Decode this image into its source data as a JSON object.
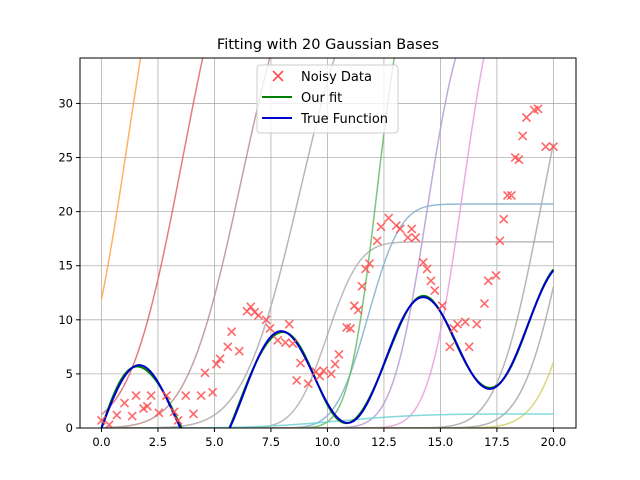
{
  "chart_data": {
    "type": "line",
    "title": "Fitting with 20 Gaussian Bases",
    "xlabel": "",
    "ylabel": "",
    "xlim": [
      -0.95,
      21.0
    ],
    "ylim": [
      0,
      34.2
    ],
    "xticks": [
      0.0,
      2.5,
      5.0,
      7.5,
      10.0,
      12.5,
      15.0,
      17.5,
      20.0
    ],
    "xtick_labels": [
      "0.0",
      "2.5",
      "5.0",
      "7.5",
      "10.0",
      "12.5",
      "15.0",
      "17.5",
      "20.0"
    ],
    "yticks": [
      0,
      5,
      10,
      15,
      20,
      25,
      30
    ],
    "ytick_labels": [
      "0",
      "5",
      "10",
      "15",
      "20",
      "25",
      "30"
    ],
    "grid": true,
    "legend": {
      "placement": "top-center",
      "entries": [
        {
          "label": "Noisy Data",
          "color": "#ff4d4d",
          "marker": "x"
        },
        {
          "label": "Our fit",
          "color": "#008000",
          "marker": "line"
        },
        {
          "label": "True Function",
          "color": "#0000cc",
          "marker": "line"
        }
      ]
    },
    "noisy_data": {
      "name": "Noisy Data",
      "color": "#ff4d4d",
      "points": [
        [
          0.0,
          0.7
        ],
        [
          0.34,
          0.3
        ],
        [
          0.68,
          1.2
        ],
        [
          1.02,
          2.3
        ],
        [
          1.36,
          1.1
        ],
        [
          1.53,
          3.0
        ],
        [
          1.86,
          1.8
        ],
        [
          2.03,
          2.0
        ],
        [
          2.2,
          3.0
        ],
        [
          2.54,
          1.4
        ],
        [
          2.88,
          3.0
        ],
        [
          3.22,
          1.5
        ],
        [
          3.39,
          0.7
        ],
        [
          3.73,
          3.0
        ],
        [
          4.07,
          1.3
        ],
        [
          4.41,
          3.0
        ],
        [
          4.58,
          5.1
        ],
        [
          4.92,
          3.3
        ],
        [
          5.09,
          5.9
        ],
        [
          5.25,
          6.4
        ],
        [
          5.59,
          7.5
        ],
        [
          5.76,
          8.9
        ],
        [
          6.1,
          7.1
        ],
        [
          6.44,
          10.8
        ],
        [
          6.61,
          11.2
        ],
        [
          6.78,
          10.7
        ],
        [
          6.95,
          10.4
        ],
        [
          7.29,
          10.0
        ],
        [
          7.46,
          9.2
        ],
        [
          7.8,
          8.1
        ],
        [
          8.14,
          7.9
        ],
        [
          8.31,
          9.6
        ],
        [
          8.47,
          7.8
        ],
        [
          8.64,
          4.4
        ],
        [
          8.81,
          6.0
        ],
        [
          9.15,
          4.1
        ],
        [
          9.49,
          5.2
        ],
        [
          9.66,
          4.8
        ],
        [
          9.83,
          5.3
        ],
        [
          10.17,
          5.0
        ],
        [
          10.34,
          5.9
        ],
        [
          10.51,
          6.8
        ],
        [
          10.85,
          9.3
        ],
        [
          11.02,
          9.2
        ],
        [
          11.19,
          11.3
        ],
        [
          11.36,
          10.9
        ],
        [
          11.53,
          13.1
        ],
        [
          11.69,
          14.7
        ],
        [
          11.86,
          15.2
        ],
        [
          12.2,
          17.3
        ],
        [
          12.37,
          18.6
        ],
        [
          12.71,
          19.4
        ],
        [
          13.05,
          18.7
        ],
        [
          13.22,
          18.4
        ],
        [
          13.56,
          17.6
        ],
        [
          13.73,
          18.4
        ],
        [
          13.9,
          17.6
        ],
        [
          14.24,
          15.3
        ],
        [
          14.41,
          14.7
        ],
        [
          14.58,
          13.6
        ],
        [
          14.75,
          12.7
        ],
        [
          15.08,
          11.3
        ],
        [
          15.42,
          7.5
        ],
        [
          15.59,
          9.2
        ],
        [
          15.76,
          9.6
        ],
        [
          16.1,
          9.8
        ],
        [
          16.27,
          7.5
        ],
        [
          16.61,
          9.6
        ],
        [
          16.95,
          11.5
        ],
        [
          17.12,
          13.6
        ],
        [
          17.46,
          14.1
        ],
        [
          17.63,
          17.3
        ],
        [
          17.8,
          19.3
        ],
        [
          17.97,
          21.5
        ],
        [
          18.14,
          21.5
        ],
        [
          18.31,
          25.0
        ],
        [
          18.47,
          24.8
        ],
        [
          18.64,
          27.0
        ],
        [
          18.81,
          28.7
        ],
        [
          19.15,
          29.4
        ],
        [
          19.32,
          29.5
        ],
        [
          19.66,
          26.0
        ],
        [
          20.0,
          26.0
        ]
      ]
    },
    "our_fit": {
      "name": "Our fit",
      "color": "#008000",
      "formula": "0.5x + 5sin(x)"
    },
    "true_function": {
      "name": "True Function",
      "color": "#0000cc",
      "formula": "0.5x + 5sin(x)"
    },
    "basis_functions": [
      {
        "color": "#ffa54a",
        "kind": "erf",
        "amplitude": 54,
        "center": 1.2,
        "width": 2.2
      },
      {
        "color": "#e06666",
        "kind": "erf",
        "amplitude": 50,
        "center": 3.6,
        "width": 2.6
      },
      {
        "color": "#bc8f8f",
        "kind": "erf",
        "amplitude": 46,
        "center": 6.2,
        "width": 2.7
      },
      {
        "color": "#aaaaaa",
        "kind": "erf",
        "amplitude": 44,
        "center": 8.8,
        "width": 2.8
      },
      {
        "color": "#b0b0b0",
        "kind": "erf",
        "amplitude": 17.2,
        "center": 10.0,
        "width": 1.6
      },
      {
        "color": "#7fb0d0",
        "kind": "erf",
        "amplitude": 20.7,
        "center": 11.8,
        "width": 1.6
      },
      {
        "color": "#66bb66",
        "kind": "erf",
        "amplitude": 44,
        "center": 12.2,
        "width": 1.4
      },
      {
        "color": "#b79ad6",
        "kind": "erf",
        "amplitude": 40,
        "center": 14.4,
        "width": 1.7
      },
      {
        "color": "#e8a0d8",
        "kind": "erf",
        "amplitude": 44,
        "center": 16.0,
        "width": 1.7
      },
      {
        "color": "#aaaaaa",
        "kind": "erf",
        "amplitude": 42,
        "center": 19.5,
        "width": 2.2
      },
      {
        "color": "#a8a8a8",
        "kind": "erf",
        "amplitude": 40,
        "center": 20.7,
        "width": 2.2
      },
      {
        "color": "#d4d066",
        "kind": "erf",
        "amplitude": 40,
        "center": 21.6,
        "width": 2.2
      },
      {
        "color": "#6fd4d4",
        "kind": "erf",
        "amplitude": 1.3,
        "center": 10.5,
        "width": 4.0
      }
    ]
  }
}
